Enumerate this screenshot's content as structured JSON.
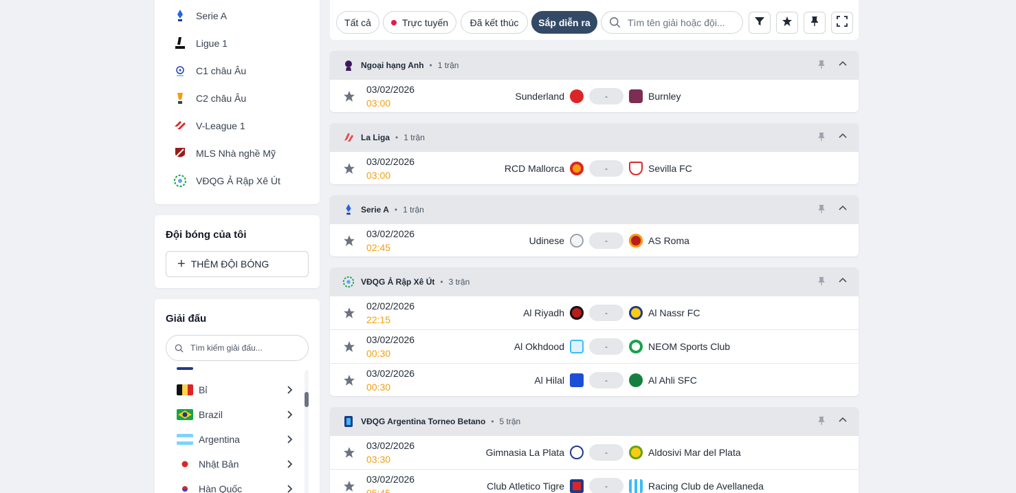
{
  "sidebar": {
    "leagues": [
      {
        "name": "Serie A",
        "icon": "serie-a-logo",
        "color": "#1e40af"
      },
      {
        "name": "Ligue 1",
        "icon": "ligue1-logo",
        "color": "#111827"
      },
      {
        "name": "C1 châu Âu",
        "icon": "ucl-logo",
        "color": "#1e3a8a"
      },
      {
        "name": "C2 châu Âu",
        "icon": "uel-logo",
        "color": "#f97316"
      },
      {
        "name": "V-League 1",
        "icon": "vleague-logo",
        "color": "#dc2626"
      },
      {
        "name": "MLS Nhà nghề Mỹ",
        "icon": "mls-logo",
        "color": "#991b1b"
      },
      {
        "name": "VĐQG Ả Rập Xê Út",
        "icon": "saudi-pro-league-logo",
        "color": "#16a34a"
      }
    ],
    "my_teams": {
      "title": "Đội bóng của tôi",
      "add_label": "THÊM ĐỘI BÓNG"
    },
    "tournaments": {
      "title": "Giải đấu",
      "search_placeholder": "Tìm kiếm giải đấu...",
      "countries": [
        {
          "name": "Bỉ",
          "flag": "belgium-flag"
        },
        {
          "name": "Brazil",
          "flag": "brazil-flag"
        },
        {
          "name": "Argentina",
          "flag": "argentina-flag"
        },
        {
          "name": "Nhật Bản",
          "flag": "japan-flag"
        },
        {
          "name": "Hàn Quốc",
          "flag": "south-korea-flag"
        }
      ]
    }
  },
  "filters": {
    "all": "Tất cả",
    "live": "Trực tuyến",
    "finished": "Đã kết thúc",
    "upcoming": "Sắp diễn ra",
    "search_placeholder": "Tìm tên giải hoặc đội...",
    "active": "upcoming"
  },
  "groups": [
    {
      "league": "Ngoại hạng Anh",
      "count": "1 trận",
      "logo": "premier-league-logo",
      "matches": [
        {
          "date": "03/02/2026",
          "time": "03:00",
          "home": "Sunderland",
          "away": "Burnley",
          "score": "-",
          "home_color": "#dc2626",
          "away_color": "#7c2d52"
        }
      ]
    },
    {
      "league": "La Liga",
      "count": "1 trận",
      "logo": "laliga-logo",
      "matches": [
        {
          "date": "03/02/2026",
          "time": "03:00",
          "home": "RCD Mallorca",
          "away": "Sevilla FC",
          "score": "-",
          "home_color": "#dc2626",
          "away_color": "#e5e7eb"
        }
      ]
    },
    {
      "league": "Serie A",
      "count": "1 trận",
      "logo": "serie-a-logo",
      "matches": [
        {
          "date": "03/02/2026",
          "time": "02:45",
          "home": "Udinese",
          "away": "AS Roma",
          "score": "-",
          "home_color": "#d1d5db",
          "away_color": "#b91c1c"
        }
      ]
    },
    {
      "league": "VĐQG Ả Rập Xê Út",
      "count": "3 trận",
      "logo": "saudi-pro-league-logo",
      "matches": [
        {
          "date": "02/02/2026",
          "time": "22:15",
          "home": "Al Riyadh",
          "away": "Al Nassr FC",
          "score": "-",
          "home_color": "#b91c1c",
          "away_color": "#facc15"
        },
        {
          "date": "03/02/2026",
          "time": "00:30",
          "home": "Al Okhdood",
          "away": "NEOM Sports Club",
          "score": "-",
          "home_color": "#38bdf8",
          "away_color": "#16a34a"
        },
        {
          "date": "03/02/2026",
          "time": "00:30",
          "home": "Al Hilal",
          "away": "Al Ahli SFC",
          "score": "-",
          "home_color": "#1d4ed8",
          "away_color": "#15803d"
        }
      ]
    },
    {
      "league": "VĐQG Argentina Torneo Betano",
      "count": "5 trận",
      "logo": "argentina-league-logo",
      "matches": [
        {
          "date": "03/02/2026",
          "time": "03:30",
          "home": "Gimnasia La Plata",
          "away": "Aldosivi Mar del Plata",
          "score": "-",
          "home_color": "#e5e7eb",
          "away_color": "#65a30d"
        },
        {
          "date": "03/02/2026",
          "time": "05:45",
          "home": "Club Atletico Tigre",
          "away": "Racing Club de Avellaneda",
          "score": "-",
          "home_color": "#1e3a8a",
          "away_color": "#38bdf8"
        }
      ]
    }
  ]
}
